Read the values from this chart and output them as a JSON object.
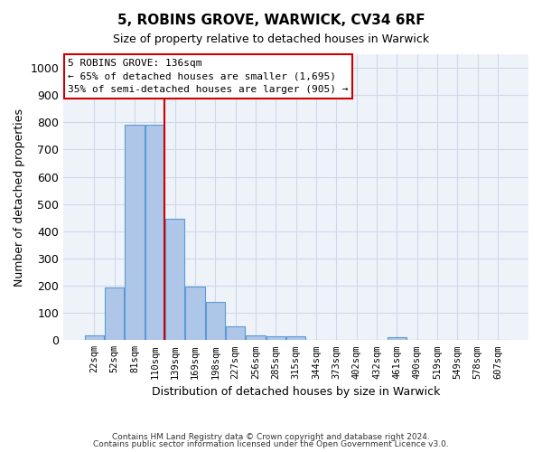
{
  "title1": "5, ROBINS GROVE, WARWICK, CV34 6RF",
  "title2": "Size of property relative to detached houses in Warwick",
  "xlabel": "Distribution of detached houses by size in Warwick",
  "ylabel": "Number of detached properties",
  "footer1": "Contains HM Land Registry data © Crown copyright and database right 2024.",
  "footer2": "Contains public sector information licensed under the Open Government Licence v3.0.",
  "bins": [
    "22sqm",
    "52sqm",
    "81sqm",
    "110sqm",
    "139sqm",
    "169sqm",
    "198sqm",
    "227sqm",
    "256sqm",
    "285sqm",
    "315sqm",
    "344sqm",
    "373sqm",
    "402sqm",
    "432sqm",
    "461sqm",
    "490sqm",
    "519sqm",
    "549sqm",
    "578sqm",
    "607sqm"
  ],
  "bar_values": [
    18,
    195,
    790,
    790,
    445,
    197,
    140,
    50,
    18,
    13,
    13,
    0,
    0,
    0,
    0,
    10,
    0,
    0,
    0,
    0,
    0
  ],
  "bar_color": "#aec6e8",
  "bar_edge_color": "#5b9bd5",
  "grid_color": "#d0d8e8",
  "vline_color": "#cc0000",
  "vline_pos": 3.5,
  "annotation_text": "5 ROBINS GROVE: 136sqm\n← 65% of detached houses are smaller (1,695)\n35% of semi-detached houses are larger (905) →",
  "annotation_box_color": "#cc0000",
  "ylim": [
    0,
    1050
  ],
  "yticks": [
    0,
    100,
    200,
    300,
    400,
    500,
    600,
    700,
    800,
    900,
    1000
  ],
  "background_color": "#eef2f9"
}
